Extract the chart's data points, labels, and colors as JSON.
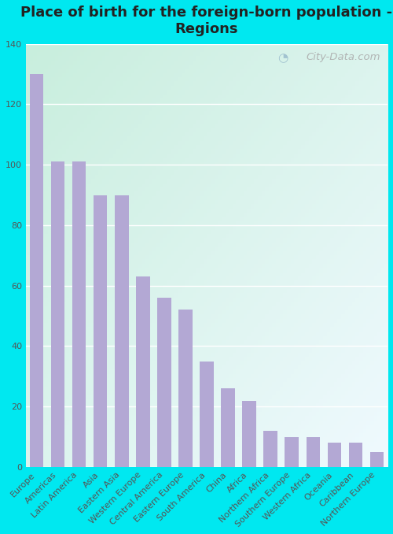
{
  "title": "Place of birth for the foreign-born population -\nRegions",
  "categories": [
    "Europe",
    "Americas",
    "Latin America",
    "Asia",
    "Eastern Asia",
    "Western Europe",
    "Central America",
    "Eastern Europe",
    "South America",
    "China",
    "Africa",
    "Northern Africa",
    "Southern Europe",
    "Western Africa",
    "Oceania",
    "Caribbean",
    "Northern Europe"
  ],
  "values": [
    130,
    101,
    101,
    90,
    90,
    63,
    56,
    52,
    35,
    26,
    22,
    12,
    10,
    10,
    8,
    8,
    5
  ],
  "bar_color": "#b3a8d4",
  "fig_bg_color": "#00e8f0",
  "plot_bg_gradient_top_left": "#c8eedd",
  "plot_bg_gradient_bottom_right": "#f0faff",
  "ylim": [
    0,
    140
  ],
  "yticks": [
    0,
    20,
    40,
    60,
    80,
    100,
    120,
    140
  ],
  "grid_color": "#ffffff",
  "watermark": "City-Data.com",
  "title_fontsize": 13,
  "tick_fontsize": 8,
  "ylabel_fontsize": 9
}
